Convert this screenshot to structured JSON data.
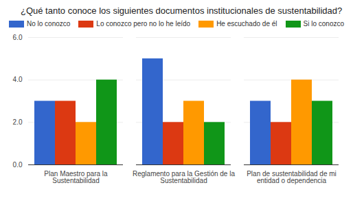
{
  "chart_data": {
    "type": "bar",
    "title": "¿Qué tanto conoce los siguientes documentos institucionales de sustentabilidad?",
    "categories": [
      "Plan Maestro para la Sustentabilidad",
      "Reglamento para la Gestión de la Sustentabilidad",
      "Plan de sustentabilidad de mi entidad o dependencia"
    ],
    "series": [
      {
        "name": "No lo conozco",
        "color": "#3366cc",
        "values": [
          3,
          5,
          3
        ]
      },
      {
        "name": "Lo conozco pero no lo he leído",
        "color": "#dc3912",
        "values": [
          3,
          2,
          2
        ]
      },
      {
        "name": "He escuchado de él",
        "color": "#ff9900",
        "values": [
          2,
          3,
          4
        ]
      },
      {
        "name": "Si lo conozco",
        "color": "#109618",
        "values": [
          4,
          2,
          3
        ]
      }
    ],
    "ylim": [
      0,
      6
    ],
    "yticks": [
      0,
      2,
      4,
      6
    ],
    "grid": true,
    "legend": "top"
  }
}
